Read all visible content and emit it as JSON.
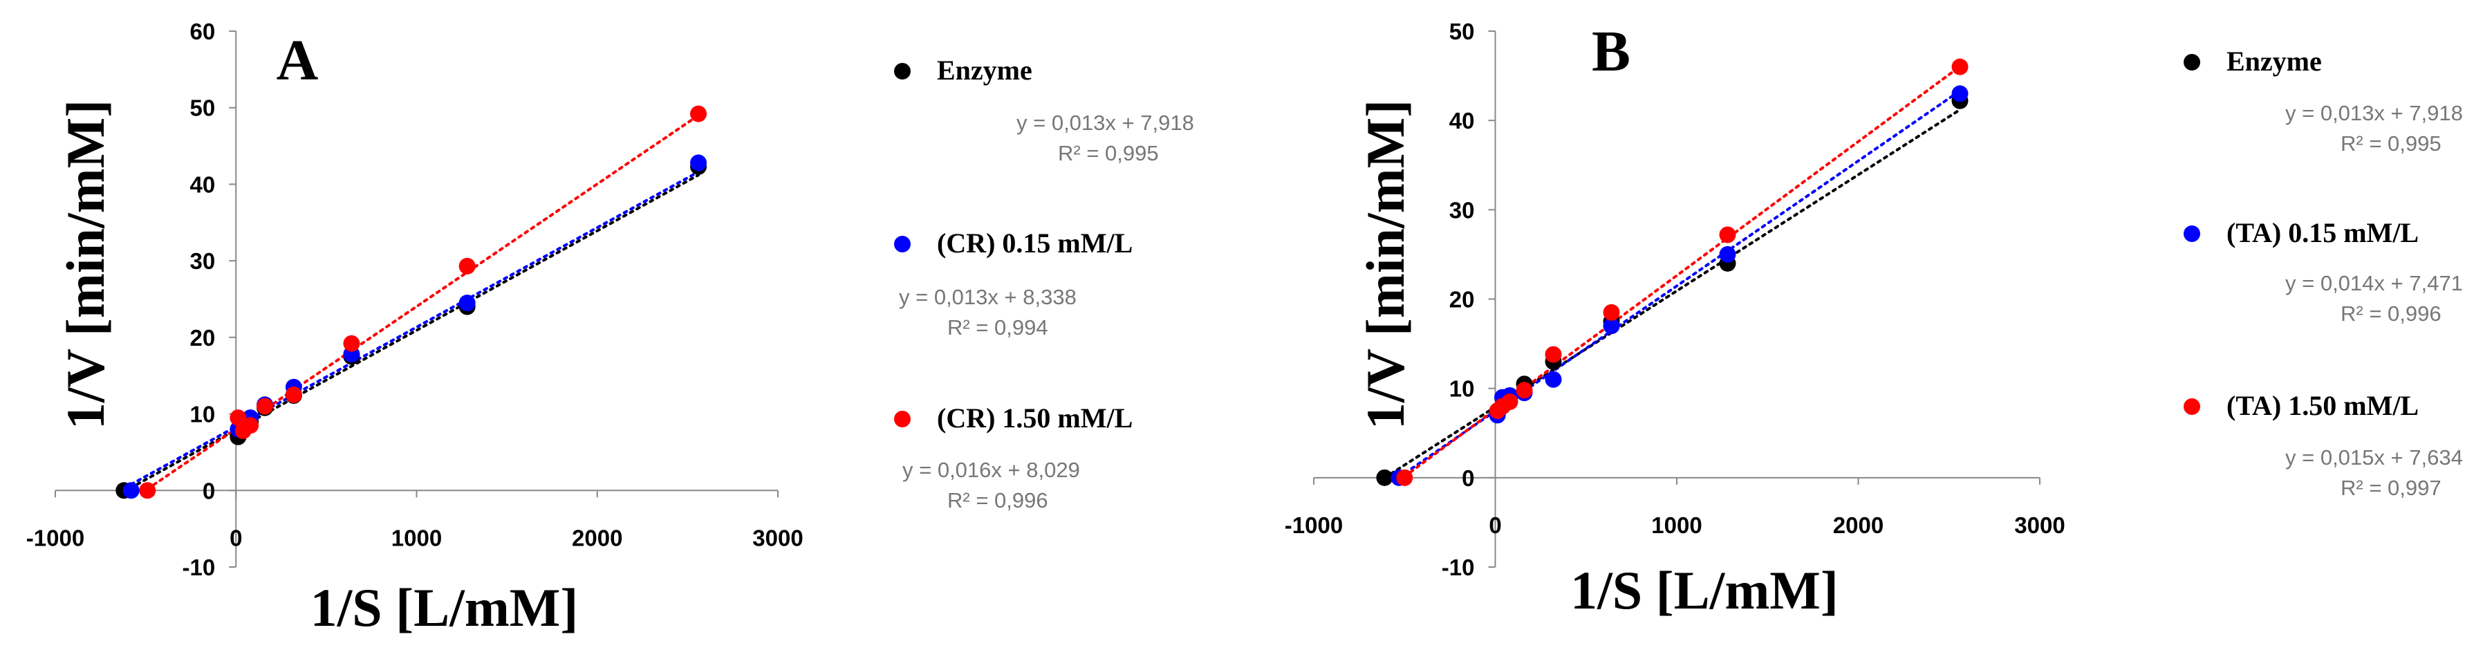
{
  "chart_data": [
    {
      "type": "scatter",
      "panel_label": "A",
      "xlabel": "1/S [L/mM]",
      "ylabel": "1/V [min/mM]",
      "xlim": [
        -1000,
        3000
      ],
      "ylim": [
        -10,
        60
      ],
      "xticks": [
        -1000,
        0,
        1000,
        2000,
        3000
      ],
      "yticks": [
        -10,
        0,
        10,
        20,
        30,
        40,
        50,
        60
      ],
      "legend_position": "right",
      "grid": false,
      "series": [
        {
          "name": "Enzyme",
          "color": "#000000",
          "equation": "y = 0,013x + 7,918",
          "r2": "R² = 0,995",
          "slope": 0.013,
          "intercept": 7.918,
          "points": [
            [
              -620,
              0
            ],
            [
              12,
              7.0
            ],
            [
              40,
              8.2
            ],
            [
              80,
              9.0
            ],
            [
              160,
              10.8
            ],
            [
              320,
              12.4
            ],
            [
              640,
              17.5
            ],
            [
              1280,
              24.0
            ],
            [
              2560,
              42.3
            ]
          ]
        },
        {
          "name": "(CR) 0.15 mM/L",
          "color": "#0000ff",
          "equation": "y = 0,013x + 8,338",
          "r2": "R² = 0,994",
          "slope": 0.013,
          "intercept": 8.338,
          "points": [
            [
              -580,
              0
            ],
            [
              12,
              8.0
            ],
            [
              40,
              8.8
            ],
            [
              80,
              9.5
            ],
            [
              160,
              11.2
            ],
            [
              320,
              13.5
            ],
            [
              640,
              17.8
            ],
            [
              1280,
              24.5
            ],
            [
              2560,
              42.8
            ]
          ]
        },
        {
          "name": "(CR) 1.50 mM/L",
          "color": "#ff0000",
          "equation": "y = 0,016x + 8,029",
          "r2": "R² = 0,996",
          "slope": 0.016,
          "intercept": 8.029,
          "points": [
            [
              -490,
              0
            ],
            [
              12,
              9.5
            ],
            [
              40,
              7.8
            ],
            [
              80,
              8.5
            ],
            [
              160,
              11.0
            ],
            [
              320,
              12.5
            ],
            [
              640,
              19.2
            ],
            [
              1280,
              29.3
            ],
            [
              2560,
              49.2
            ]
          ]
        }
      ]
    },
    {
      "type": "scatter",
      "panel_label": "B",
      "xlabel": "1/S [L/mM]",
      "ylabel": "1/V [min/mM]",
      "xlim": [
        -1000,
        3000
      ],
      "ylim": [
        -10,
        50
      ],
      "xticks": [
        -1000,
        0,
        1000,
        2000,
        3000
      ],
      "yticks": [
        -10,
        0,
        10,
        20,
        30,
        40,
        50
      ],
      "legend_position": "right",
      "grid": false,
      "series": [
        {
          "name": "Enzyme",
          "color": "#000000",
          "equation": "y = 0,013x + 7,918",
          "r2": "R² = 0,995",
          "slope": 0.013,
          "intercept": 7.918,
          "points": [
            [
              -610,
              0
            ],
            [
              12,
              7.2
            ],
            [
              40,
              8.0
            ],
            [
              80,
              9.0
            ],
            [
              160,
              10.5
            ],
            [
              320,
              13.0
            ],
            [
              640,
              17.5
            ],
            [
              1280,
              24.0
            ],
            [
              2560,
              42.2
            ]
          ]
        },
        {
          "name": "(TA) 0.15 mM/L",
          "color": "#0000ff",
          "equation": "y = 0,014x + 7,471",
          "r2": "R² = 0,996",
          "slope": 0.014,
          "intercept": 7.471,
          "points": [
            [
              -530,
              0
            ],
            [
              12,
              7.0
            ],
            [
              40,
              9.0
            ],
            [
              80,
              9.2
            ],
            [
              160,
              9.5
            ],
            [
              320,
              11.0
            ],
            [
              640,
              17.0
            ],
            [
              1280,
              25.0
            ],
            [
              2560,
              43.0
            ]
          ]
        },
        {
          "name": "(TA) 1.50 mM/L",
          "color": "#ff0000",
          "equation": "y = 0,015x + 7,634",
          "r2": "R² = 0,997",
          "slope": 0.015,
          "intercept": 7.634,
          "points": [
            [
              -500,
              0
            ],
            [
              12,
              7.5
            ],
            [
              40,
              8.0
            ],
            [
              80,
              8.5
            ],
            [
              160,
              9.8
            ],
            [
              320,
              13.8
            ],
            [
              640,
              18.5
            ],
            [
              1280,
              27.2
            ],
            [
              2560,
              46.0
            ]
          ]
        }
      ]
    }
  ]
}
